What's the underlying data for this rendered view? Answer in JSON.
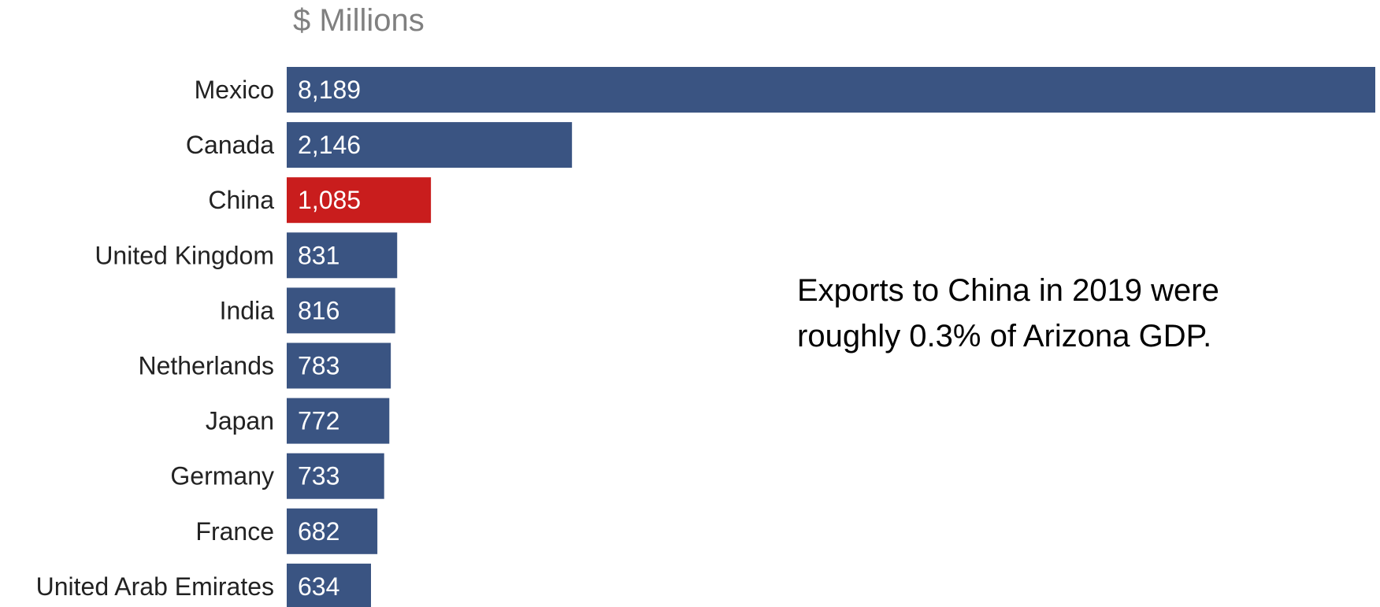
{
  "chart_data": {
    "type": "bar",
    "orientation": "horizontal",
    "title": "",
    "units_label": "$ Millions",
    "categories": [
      "Mexico",
      "Canada",
      "China",
      "United Kingdom",
      "India",
      "Netherlands",
      "Japan",
      "Germany",
      "France",
      "United Arab Emirates"
    ],
    "values": [
      8189,
      2146,
      1085,
      831,
      816,
      783,
      772,
      733,
      682,
      634
    ],
    "value_labels": [
      "8,189",
      "2,146",
      "1,085",
      "831",
      "816",
      "783",
      "772",
      "733",
      "682",
      "634"
    ],
    "highlight_category": "China",
    "xlim": [
      0,
      8189
    ],
    "grid": false,
    "legend": "none",
    "annotation": "Exports to China in 2019 were roughly 0.3% of Arizona GDP.",
    "colors": {
      "bar": "#3a5482",
      "highlight": "#c91d1d",
      "value_label": "#ffffff",
      "category_label": "#222222",
      "units_label": "#808080"
    }
  }
}
